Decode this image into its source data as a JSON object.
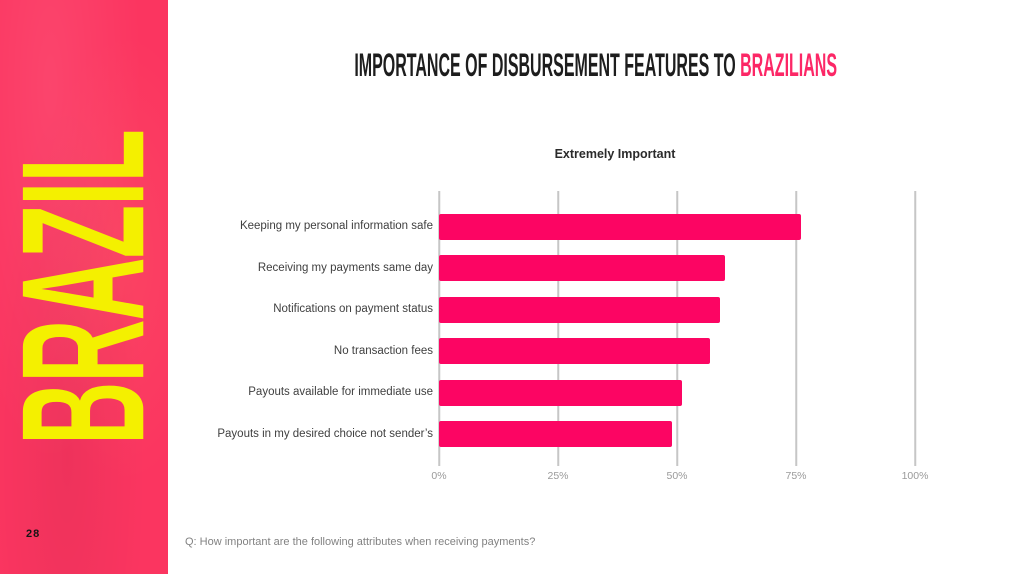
{
  "sidebar": {
    "region_label": "BRAZIL",
    "page_number": "28",
    "background_color": "#FB3560",
    "label_color": "#F4F000"
  },
  "header": {
    "title_prefix": "IMPORTANCE OF DISBURSEMENT FEATURES TO ",
    "title_highlight": "BRAZILIANS",
    "title_color": "#1D1D1D",
    "highlight_color": "#FC2766"
  },
  "chart_data": {
    "type": "bar",
    "orientation": "horizontal",
    "title": "Extremely Important",
    "categories": [
      "Keeping my personal information safe",
      "Receiving my payments same day",
      "Notifications on payment status",
      "No transaction fees",
      "Payouts available for immediate use",
      "Payouts in my desired choice not sender’s"
    ],
    "values": [
      76,
      60,
      59,
      57,
      51,
      49
    ],
    "unit": "%",
    "xlim": [
      0,
      100
    ],
    "x_ticks": [
      "0%",
      "25%",
      "50%",
      "75%",
      "100%"
    ],
    "x_tick_values": [
      0,
      25,
      50,
      75,
      100
    ],
    "bar_color": "#FC0563",
    "gridline_color": "#C6C6C6",
    "grid": true,
    "legend": "none"
  },
  "footer": {
    "note": "Q: How important are the following attributes when receiving payments?"
  }
}
